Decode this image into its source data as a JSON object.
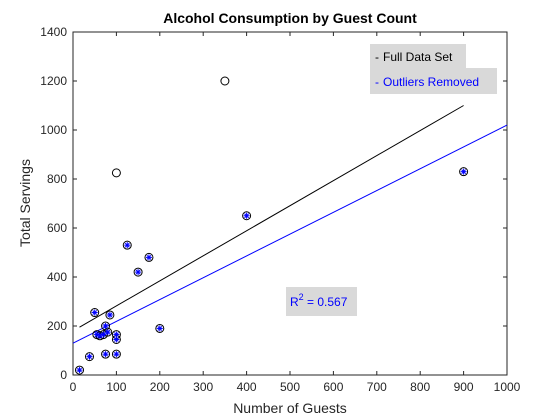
{
  "chart_data": {
    "type": "scatter",
    "title": "Alcohol Consumption by Guest Count",
    "xlabel": "Number of Guests",
    "ylabel": "Total Servings",
    "xlim": [
      0,
      1000
    ],
    "ylim": [
      0,
      1400
    ],
    "xticks": [
      "0",
      "100",
      "200",
      "300",
      "400",
      "500",
      "600",
      "700",
      "800",
      "900",
      "1000"
    ],
    "yticks": [
      "0",
      "200",
      "400",
      "600",
      "800",
      "1000",
      "1200",
      "1400"
    ],
    "grid": false,
    "legend_position": "top-right",
    "series": [
      {
        "name": "Full Data Set",
        "color": "#000000",
        "marker": "circle",
        "points": [
          [
            15,
            20
          ],
          [
            38,
            75
          ],
          [
            50,
            255
          ],
          [
            55,
            165
          ],
          [
            62,
            160
          ],
          [
            70,
            165
          ],
          [
            75,
            85
          ],
          [
            75,
            200
          ],
          [
            80,
            175
          ],
          [
            85,
            245
          ],
          [
            100,
            85
          ],
          [
            100,
            145
          ],
          [
            100,
            165
          ],
          [
            125,
            530
          ],
          [
            150,
            420
          ],
          [
            175,
            480
          ],
          [
            200,
            190
          ],
          [
            400,
            650
          ],
          [
            900,
            830
          ],
          [
            100,
            825
          ],
          [
            350,
            1200
          ]
        ],
        "fit_line": [
          [
            15,
            195
          ],
          [
            900,
            1100
          ]
        ]
      },
      {
        "name": "Outliers Removed",
        "color": "#0000ff",
        "marker": "asterisk",
        "points": [
          [
            15,
            20
          ],
          [
            38,
            75
          ],
          [
            50,
            255
          ],
          [
            55,
            165
          ],
          [
            62,
            160
          ],
          [
            70,
            165
          ],
          [
            75,
            85
          ],
          [
            75,
            200
          ],
          [
            80,
            175
          ],
          [
            85,
            245
          ],
          [
            100,
            85
          ],
          [
            100,
            145
          ],
          [
            100,
            165
          ],
          [
            125,
            530
          ],
          [
            150,
            420
          ],
          [
            175,
            480
          ],
          [
            200,
            190
          ],
          [
            400,
            650
          ],
          [
            900,
            830
          ]
        ],
        "fit_line": [
          [
            0,
            130
          ],
          [
            1000,
            1020
          ]
        ]
      }
    ],
    "annotation": {
      "prefix": "R",
      "superscript": "2",
      "suffix": " = 0.567",
      "color": "#0000ff",
      "x": 600,
      "y": 300
    }
  }
}
